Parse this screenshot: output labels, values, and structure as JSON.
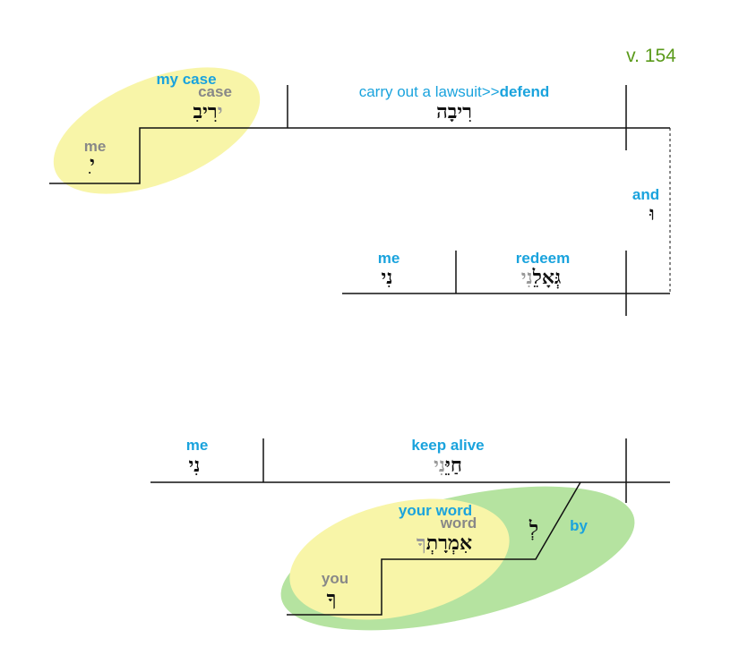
{
  "verse": "v. 154",
  "clause1": {
    "verb_gloss_plain": "carry out a lawsuit>>",
    "verb_gloss_bold": "defend",
    "verb_hebrew": "רִיבָה",
    "object_gloss": "my case",
    "object_word_gloss": "case",
    "object_hebrew": "רִיבִ",
    "object_suffix_hebrew": "י",
    "possessor_gloss": "me",
    "possessor_hebrew": "ִי"
  },
  "conjunction": {
    "gloss": "and",
    "hebrew": "וּ"
  },
  "clause2": {
    "verb_gloss": "redeem",
    "verb_hebrew": "גְּאָלֵ",
    "verb_suffix_hebrew": "נִי",
    "object_gloss": "me",
    "object_hebrew": "נִי"
  },
  "clause3": {
    "verb_gloss": "keep alive",
    "verb_hebrew": "חַיֵּ",
    "verb_suffix_hebrew": "נִי",
    "object_gloss": "me",
    "object_hebrew": "נִי",
    "preposition_gloss": "by",
    "preposition_hebrew": "לְ",
    "pp_object_gloss": "your word",
    "pp_word_gloss": "word",
    "pp_hebrew": "אִמְרָתְ",
    "pp_suffix_hebrew": "ךָ",
    "pp_possessor_gloss": "you",
    "pp_possessor_hebrew": "ךָ"
  },
  "colors": {
    "gloss": "#1aa3dd",
    "verse": "#5a9a1a",
    "yellow": "#f8f5a8",
    "green": "#b5e3a0"
  }
}
